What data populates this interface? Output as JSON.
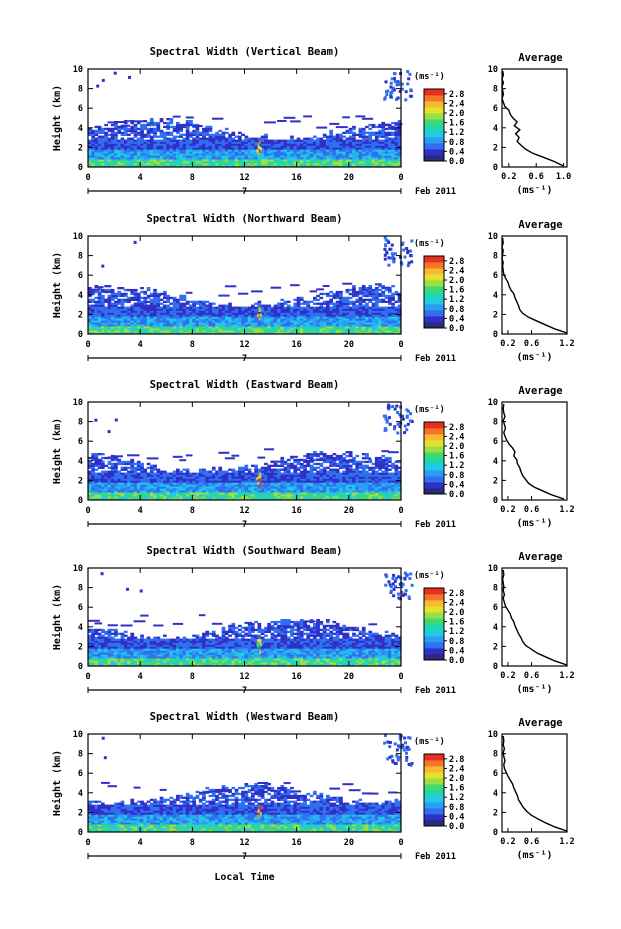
{
  "chart_data": {
    "type": "heatmap",
    "xlabel": "Local Time",
    "date_label": "Feb 2011",
    "day_marker": "7",
    "x_ticks": [
      "0",
      "4",
      "8",
      "12",
      "16",
      "20",
      "0"
    ],
    "y_ticks": [
      "0",
      "2",
      "4",
      "6",
      "8",
      "10"
    ],
    "ylabel": "Height (km)",
    "xlim_hours": [
      0,
      24
    ],
    "ylim_km": [
      0,
      10
    ],
    "colorbar": {
      "unit": "(ms⁻¹)",
      "ticks": [
        "0.0",
        "0.4",
        "0.8",
        "1.2",
        "1.6",
        "2.0",
        "2.4",
        "2.8"
      ],
      "range": [
        0,
        3.0
      ],
      "colors": [
        "#2a2a7a",
        "#3030c8",
        "#2f6ff0",
        "#2a9ef5",
        "#22c8e6",
        "#20d6b0",
        "#40d870",
        "#9ae042",
        "#e6e030",
        "#f8b830",
        "#f47428",
        "#e83020"
      ]
    },
    "panels": [
      {
        "title": "Spectral Width (Vertical Beam)",
        "avg_title": "Average",
        "avg_xticks": [
          "0.2",
          "0.6",
          "1.0"
        ],
        "avg_xlim": [
          0.1,
          1.05
        ],
        "avg_xlabel": "(ms⁻¹)",
        "avg_profile": [
          [
            1.0,
            0.1
          ],
          [
            0.85,
            0.6
          ],
          [
            0.7,
            1.0
          ],
          [
            0.55,
            1.4
          ],
          [
            0.45,
            1.8
          ],
          [
            0.38,
            2.2
          ],
          [
            0.32,
            2.6
          ],
          [
            0.35,
            3.0
          ],
          [
            0.3,
            3.4
          ],
          [
            0.36,
            3.8
          ],
          [
            0.28,
            4.2
          ],
          [
            0.32,
            4.6
          ],
          [
            0.26,
            5.0
          ],
          [
            0.22,
            5.4
          ],
          [
            0.2,
            5.8
          ],
          [
            0.14,
            6.2
          ],
          [
            0.12,
            6.6
          ],
          [
            0.1,
            7.0
          ],
          [
            0.12,
            7.4
          ],
          [
            0.11,
            7.8
          ],
          [
            0.1,
            8.2
          ],
          [
            0.12,
            8.6
          ],
          [
            0.1,
            9.0
          ],
          [
            0.12,
            9.4
          ],
          [
            0.11,
            9.8
          ]
        ]
      },
      {
        "title": "Spectral Width (Northward Beam)",
        "avg_title": "Average",
        "avg_xticks": [
          "0.2",
          "0.6",
          "1.2"
        ],
        "avg_xlim": [
          0.1,
          1.2
        ],
        "avg_xlabel": "(ms⁻¹)",
        "avg_profile": [
          [
            1.2,
            0.1
          ],
          [
            1.0,
            0.5
          ],
          [
            0.85,
            0.9
          ],
          [
            0.7,
            1.3
          ],
          [
            0.55,
            1.7
          ],
          [
            0.45,
            2.1
          ],
          [
            0.4,
            2.5
          ],
          [
            0.38,
            2.9
          ],
          [
            0.35,
            3.3
          ],
          [
            0.32,
            3.7
          ],
          [
            0.3,
            4.1
          ],
          [
            0.25,
            4.5
          ],
          [
            0.22,
            4.9
          ],
          [
            0.2,
            5.3
          ],
          [
            0.16,
            5.7
          ],
          [
            0.13,
            6.1
          ],
          [
            0.12,
            6.5
          ],
          [
            0.11,
            6.9
          ],
          [
            0.12,
            7.3
          ],
          [
            0.1,
            7.7
          ],
          [
            0.11,
            8.1
          ],
          [
            0.12,
            8.5
          ],
          [
            0.1,
            8.9
          ],
          [
            0.12,
            9.3
          ],
          [
            0.11,
            9.8
          ]
        ]
      },
      {
        "title": "Spectral Width (Eastward Beam)",
        "avg_title": "Average",
        "avg_xticks": [
          "0.2",
          "0.6",
          "1.2"
        ],
        "avg_xlim": [
          0.1,
          1.2
        ],
        "avg_xlabel": "(ms⁻¹)",
        "avg_profile": [
          [
            1.15,
            0.1
          ],
          [
            0.95,
            0.5
          ],
          [
            0.8,
            0.9
          ],
          [
            0.65,
            1.3
          ],
          [
            0.55,
            1.7
          ],
          [
            0.5,
            2.1
          ],
          [
            0.45,
            2.5
          ],
          [
            0.42,
            2.9
          ],
          [
            0.4,
            3.3
          ],
          [
            0.36,
            3.7
          ],
          [
            0.35,
            4.1
          ],
          [
            0.3,
            4.5
          ],
          [
            0.32,
            4.9
          ],
          [
            0.28,
            5.3
          ],
          [
            0.22,
            5.7
          ],
          [
            0.18,
            6.1
          ],
          [
            0.15,
            6.5
          ],
          [
            0.13,
            6.9
          ],
          [
            0.16,
            7.3
          ],
          [
            0.14,
            7.7
          ],
          [
            0.12,
            8.1
          ],
          [
            0.15,
            8.5
          ],
          [
            0.13,
            8.9
          ],
          [
            0.12,
            9.3
          ],
          [
            0.13,
            9.8
          ]
        ]
      },
      {
        "title": "Spectral Width (Southward Beam)",
        "avg_title": "Average",
        "avg_xticks": [
          "0.2",
          "0.6",
          "1.2"
        ],
        "avg_xlim": [
          0.1,
          1.2
        ],
        "avg_xlabel": "(ms⁻¹)",
        "avg_profile": [
          [
            1.2,
            0.1
          ],
          [
            1.0,
            0.5
          ],
          [
            0.85,
            0.9
          ],
          [
            0.7,
            1.3
          ],
          [
            0.6,
            1.7
          ],
          [
            0.5,
            2.1
          ],
          [
            0.45,
            2.5
          ],
          [
            0.42,
            2.9
          ],
          [
            0.38,
            3.3
          ],
          [
            0.35,
            3.7
          ],
          [
            0.32,
            4.1
          ],
          [
            0.3,
            4.5
          ],
          [
            0.26,
            4.9
          ],
          [
            0.24,
            5.3
          ],
          [
            0.2,
            5.7
          ],
          [
            0.16,
            6.1
          ],
          [
            0.14,
            6.5
          ],
          [
            0.12,
            6.9
          ],
          [
            0.14,
            7.3
          ],
          [
            0.12,
            7.7
          ],
          [
            0.13,
            8.1
          ],
          [
            0.12,
            8.5
          ],
          [
            0.11,
            8.9
          ],
          [
            0.13,
            9.3
          ],
          [
            0.12,
            9.8
          ]
        ]
      },
      {
        "title": "Spectral Width (Westward Beam)",
        "avg_title": "Average",
        "avg_xticks": [
          "0.2",
          "0.6",
          "1.2"
        ],
        "avg_xlim": [
          0.1,
          1.2
        ],
        "avg_xlabel": "(ms⁻¹)",
        "avg_profile": [
          [
            1.2,
            0.1
          ],
          [
            1.0,
            0.5
          ],
          [
            0.85,
            0.9
          ],
          [
            0.72,
            1.3
          ],
          [
            0.6,
            1.7
          ],
          [
            0.52,
            2.1
          ],
          [
            0.46,
            2.5
          ],
          [
            0.42,
            2.9
          ],
          [
            0.38,
            3.3
          ],
          [
            0.36,
            3.7
          ],
          [
            0.33,
            4.1
          ],
          [
            0.3,
            4.5
          ],
          [
            0.28,
            4.9
          ],
          [
            0.24,
            5.3
          ],
          [
            0.2,
            5.7
          ],
          [
            0.17,
            6.1
          ],
          [
            0.14,
            6.5
          ],
          [
            0.13,
            6.9
          ],
          [
            0.15,
            7.3
          ],
          [
            0.13,
            7.7
          ],
          [
            0.12,
            8.1
          ],
          [
            0.14,
            8.5
          ],
          [
            0.12,
            8.9
          ],
          [
            0.13,
            9.3
          ],
          [
            0.12,
            9.8
          ]
        ]
      }
    ]
  }
}
